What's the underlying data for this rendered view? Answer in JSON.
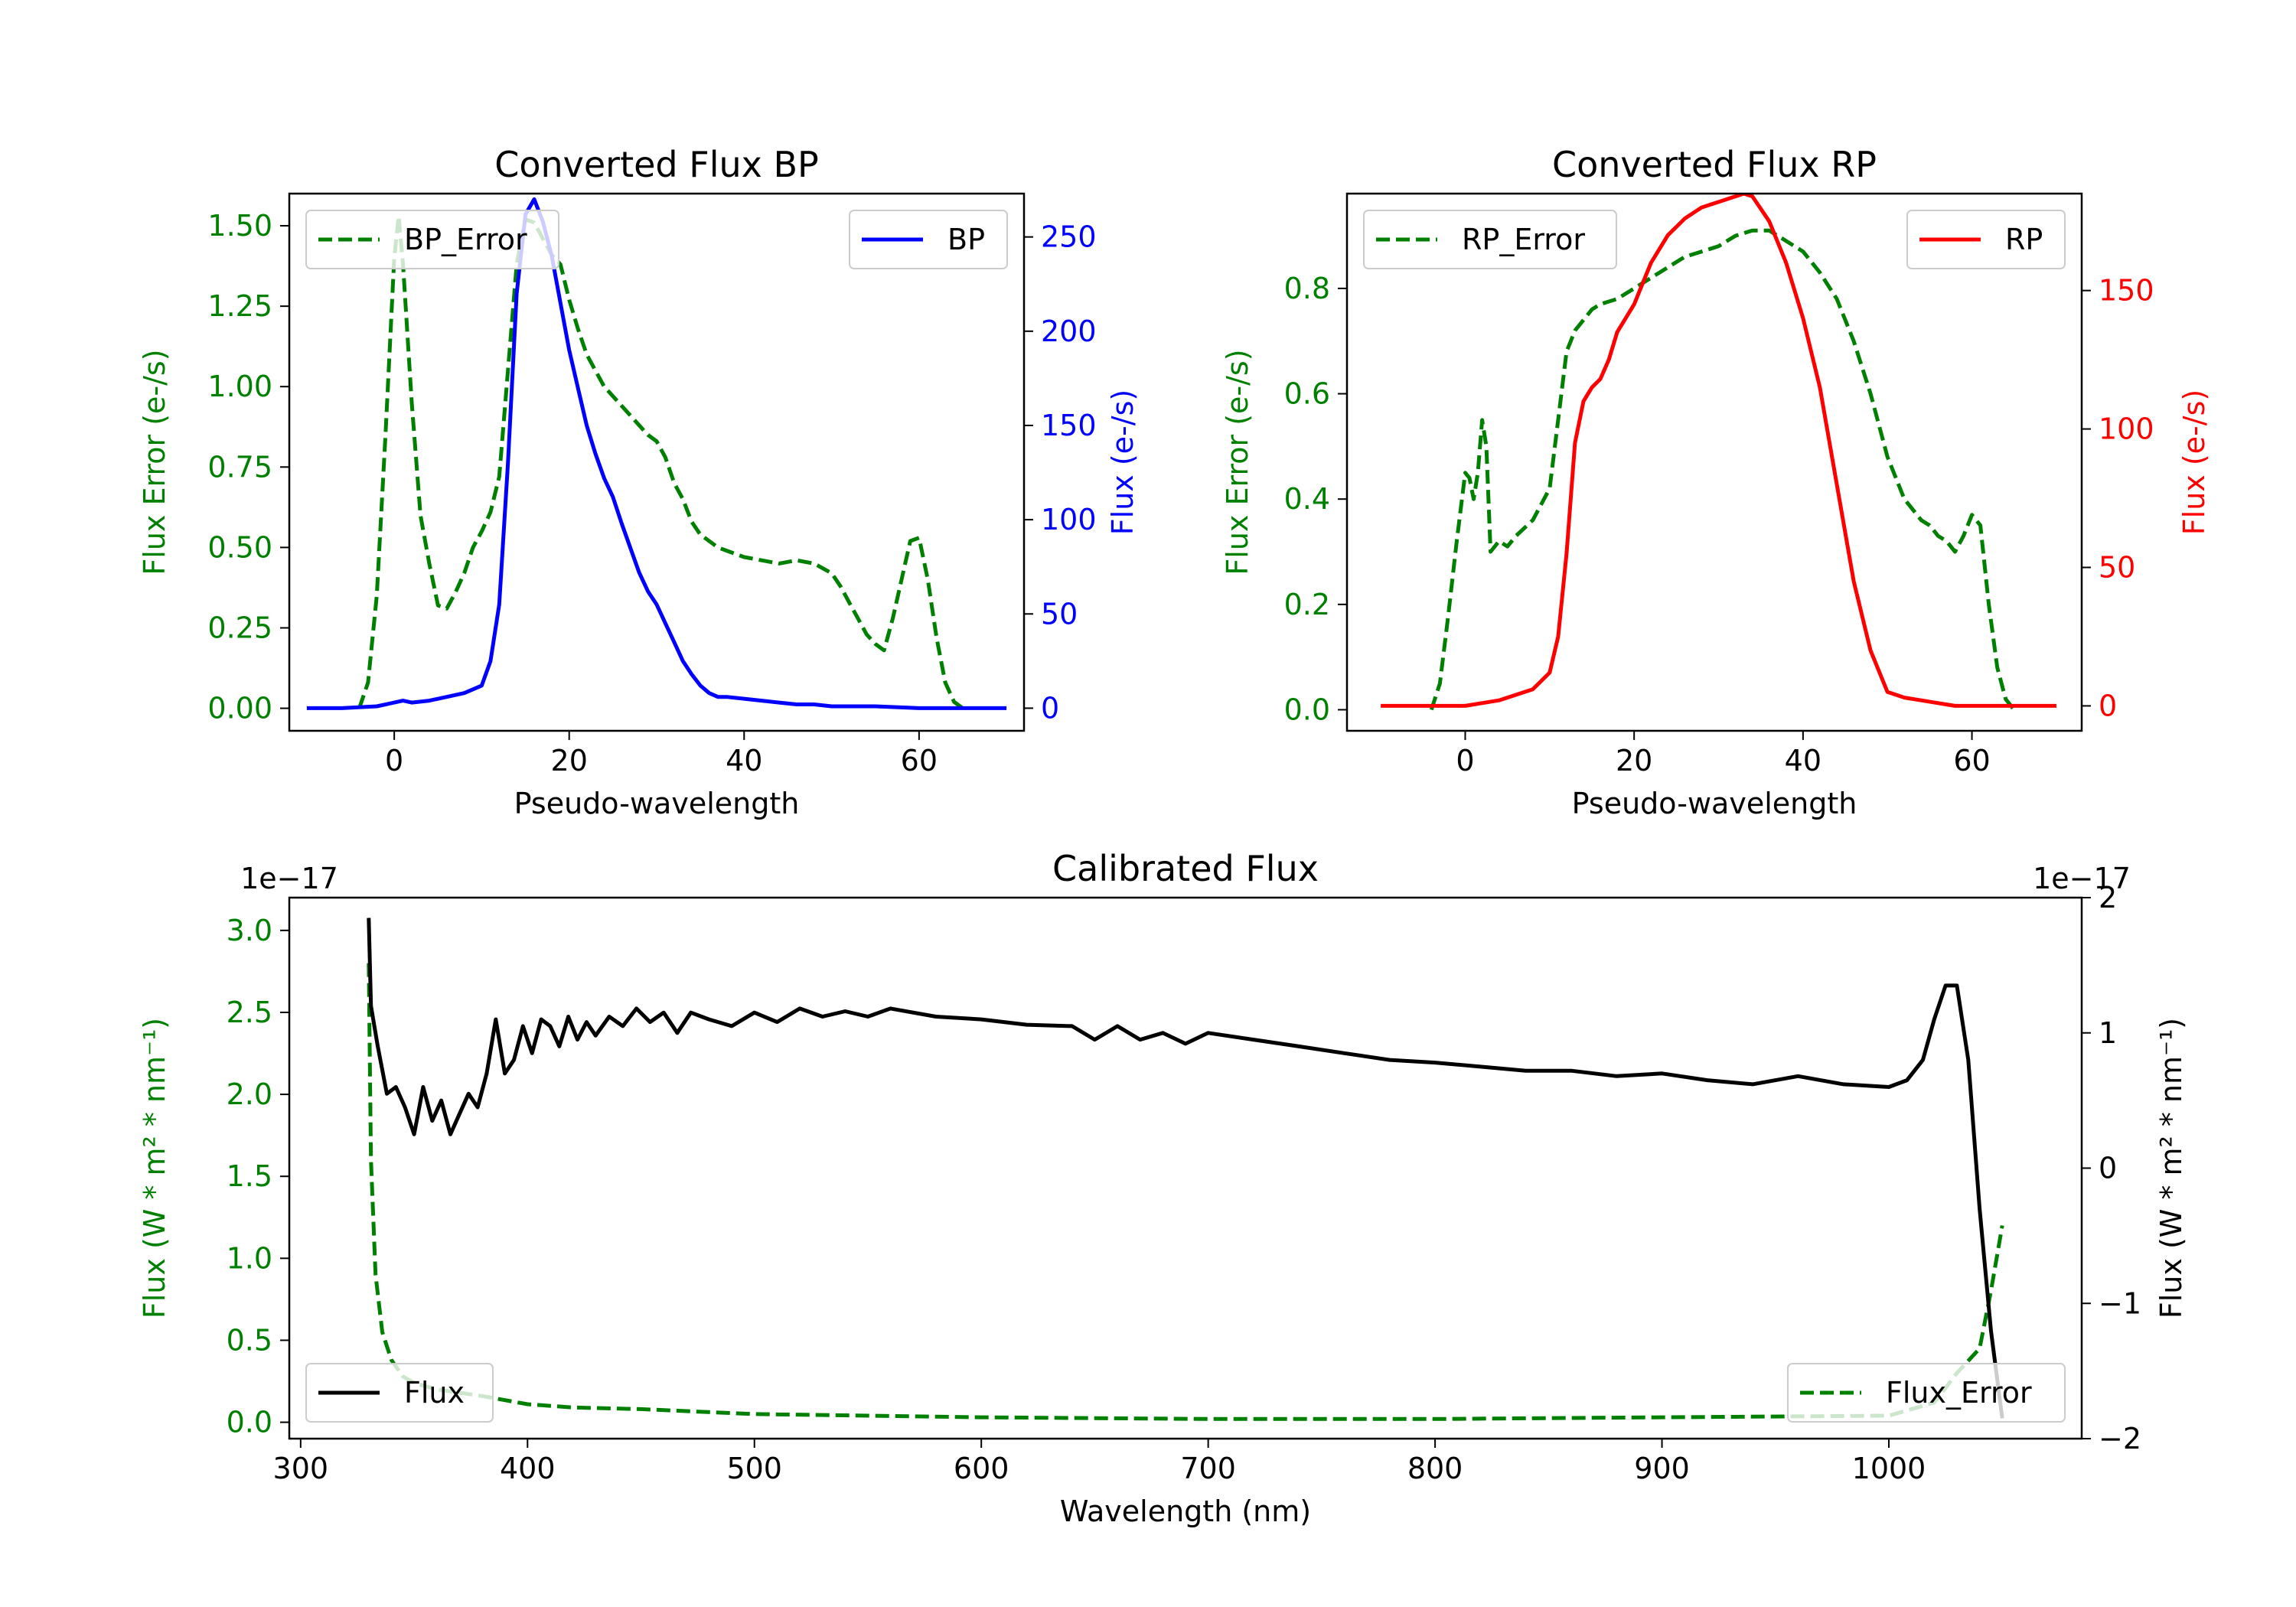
{
  "colors": {
    "green": "#008000",
    "blue": "#0000ff",
    "red": "#ff0000",
    "black": "#000000"
  },
  "chart_data": [
    {
      "type": "line",
      "title": "Converted Flux BP",
      "xlabel": "Pseudo-wavelength",
      "xlim": [
        -12,
        72
      ],
      "xticks": [
        0,
        20,
        40,
        60
      ],
      "ylabel": "Flux Error (e-/s)",
      "ylim": [
        -0.07,
        1.6
      ],
      "yticks": [
        0.0,
        0.25,
        0.5,
        0.75,
        1.0,
        1.25,
        1.5
      ],
      "ytick_labels": [
        "0.00",
        "0.25",
        "0.50",
        "0.75",
        "1.00",
        "1.25",
        "1.50"
      ],
      "y2label": "Flux (e-/s)",
      "y2lim": [
        -12,
        273
      ],
      "y2ticks": [
        0,
        50,
        100,
        150,
        200,
        250
      ],
      "legend_left": "BP_Error",
      "legend_right": "BP",
      "series": [
        {
          "name": "BP_Error",
          "axis": "left",
          "style": "dashed",
          "color": "#008000",
          "x": [
            -4,
            -3,
            -2,
            -1,
            0,
            0.5,
            1,
            2,
            3,
            4,
            5,
            6,
            7,
            8,
            9,
            10,
            11,
            12,
            13,
            14,
            15,
            16,
            17,
            18,
            19,
            20,
            21,
            22,
            23,
            24,
            25,
            26,
            27,
            28,
            29,
            30,
            31,
            32,
            33,
            34,
            35,
            36,
            37,
            38,
            39,
            40,
            42,
            44,
            46,
            48,
            50,
            51,
            52,
            53,
            54,
            55,
            56,
            57,
            58,
            59,
            60,
            61,
            62,
            63,
            64,
            65
          ],
          "y": [
            0,
            0.08,
            0.35,
            0.85,
            1.4,
            1.53,
            1.38,
            0.95,
            0.6,
            0.45,
            0.32,
            0.31,
            0.36,
            0.42,
            0.5,
            0.55,
            0.61,
            0.72,
            1.05,
            1.38,
            1.52,
            1.51,
            1.46,
            1.41,
            1.38,
            1.27,
            1.18,
            1.1,
            1.05,
            1.0,
            0.97,
            0.94,
            0.91,
            0.88,
            0.85,
            0.83,
            0.78,
            0.7,
            0.65,
            0.58,
            0.54,
            0.52,
            0.5,
            0.49,
            0.48,
            0.47,
            0.46,
            0.45,
            0.46,
            0.45,
            0.42,
            0.38,
            0.33,
            0.28,
            0.23,
            0.2,
            0.18,
            0.28,
            0.4,
            0.52,
            0.53,
            0.4,
            0.22,
            0.08,
            0.02,
            0
          ]
        },
        {
          "name": "BP",
          "axis": "right",
          "style": "solid",
          "color": "#0000ff",
          "x": [
            -10,
            -6,
            -2,
            0,
            1,
            2,
            4,
            6,
            8,
            10,
            11,
            12,
            13,
            14,
            15,
            16,
            17,
            18,
            19,
            20,
            21,
            22,
            23,
            24,
            25,
            26,
            27,
            28,
            29,
            30,
            31,
            32,
            33,
            34,
            35,
            36,
            37,
            38,
            40,
            42,
            44,
            46,
            48,
            50,
            55,
            60,
            65,
            70
          ],
          "y": [
            0,
            0,
            1,
            3,
            4,
            3,
            4,
            6,
            8,
            12,
            25,
            55,
            130,
            220,
            262,
            270,
            258,
            240,
            215,
            190,
            170,
            150,
            135,
            122,
            112,
            98,
            85,
            72,
            62,
            55,
            45,
            35,
            25,
            18,
            12,
            8,
            6,
            6,
            5,
            4,
            3,
            2,
            2,
            1,
            1,
            0,
            0,
            0
          ]
        }
      ]
    },
    {
      "type": "line",
      "title": "Converted Flux RP",
      "xlabel": "Pseudo-wavelength",
      "xlim": [
        -14,
        73
      ],
      "xticks": [
        0,
        20,
        40,
        60
      ],
      "ylabel": "Flux Error (e-/s)",
      "ylim": [
        -0.04,
        0.98
      ],
      "yticks": [
        0.0,
        0.2,
        0.4,
        0.6,
        0.8
      ],
      "ytick_labels": [
        "0.0",
        "0.2",
        "0.4",
        "0.6",
        "0.8"
      ],
      "y2label": "Flux (e-/s)",
      "y2lim": [
        -9,
        185
      ],
      "y2ticks": [
        0,
        50,
        100,
        150
      ],
      "legend_left": "RP_Error",
      "legend_right": "RP",
      "series": [
        {
          "name": "RP_Error",
          "axis": "left",
          "style": "dashed",
          "color": "#008000",
          "x": [
            -4,
            -3,
            -2,
            -1,
            0,
            0.5,
            1,
            1.5,
            2,
            2.5,
            3,
            4,
            5,
            6,
            8,
            10,
            11,
            12,
            13,
            14,
            15,
            16,
            18,
            20,
            22,
            24,
            26,
            28,
            30,
            32,
            34,
            36,
            38,
            40,
            42,
            44,
            46,
            48,
            50,
            52,
            54,
            55,
            56,
            57,
            58,
            59,
            60,
            61,
            62,
            63,
            64,
            65
          ],
          "y": [
            0,
            0.05,
            0.18,
            0.32,
            0.45,
            0.44,
            0.4,
            0.45,
            0.55,
            0.5,
            0.3,
            0.32,
            0.31,
            0.33,
            0.36,
            0.42,
            0.55,
            0.68,
            0.72,
            0.74,
            0.76,
            0.77,
            0.78,
            0.8,
            0.82,
            0.84,
            0.86,
            0.87,
            0.88,
            0.9,
            0.91,
            0.91,
            0.89,
            0.87,
            0.83,
            0.78,
            0.7,
            0.6,
            0.48,
            0.4,
            0.36,
            0.35,
            0.33,
            0.32,
            0.3,
            0.33,
            0.37,
            0.35,
            0.2,
            0.08,
            0.02,
            0
          ]
        },
        {
          "name": "RP",
          "axis": "right",
          "style": "solid",
          "color": "#ff0000",
          "x": [
            -10,
            -4,
            0,
            4,
            6,
            8,
            10,
            11,
            12,
            13,
            14,
            15,
            16,
            17,
            18,
            20,
            22,
            24,
            26,
            28,
            30,
            32,
            33,
            34,
            36,
            38,
            40,
            42,
            44,
            46,
            48,
            50,
            52,
            54,
            56,
            58,
            60,
            65,
            70
          ],
          "y": [
            0,
            0,
            0,
            2,
            4,
            6,
            12,
            25,
            55,
            95,
            110,
            115,
            118,
            125,
            135,
            145,
            160,
            170,
            176,
            180,
            182,
            184,
            185,
            184,
            175,
            160,
            140,
            115,
            80,
            45,
            20,
            5,
            3,
            2,
            1,
            0,
            0,
            0,
            0
          ]
        }
      ]
    },
    {
      "type": "line",
      "title": "Calibrated Flux",
      "xlabel": "Wavelength (nm)",
      "xlim": [
        295,
        1085
      ],
      "xticks": [
        300,
        400,
        500,
        600,
        700,
        800,
        900,
        1000
      ],
      "ylabel": "Flux (W * m² * nm⁻¹)",
      "ylim": [
        -1e-18,
        3.2e-17
      ],
      "yticks": [
        0.0,
        0.5,
        1.0,
        1.5,
        2.0,
        2.5,
        3.0
      ],
      "ytick_labels": [
        "0.0",
        "0.5",
        "1.0",
        "1.5",
        "2.0",
        "2.5",
        "3.0"
      ],
      "y_offset_label": "1e−17",
      "y2label": "Flux (W * m² * nm⁻¹)",
      "y2lim": [
        -2e-17,
        2e-17
      ],
      "y2ticks": [
        -2,
        -1,
        0,
        1,
        2
      ],
      "y2tick_labels": [
        "−2",
        "−1",
        "0",
        "1",
        "2"
      ],
      "y2_offset_label": "1e−17",
      "legend_left": "Flux",
      "legend_right": "Flux_Error",
      "series": [
        {
          "name": "Flux_Error",
          "axis": "left",
          "style": "dashed",
          "color": "#008000",
          "x": [
            330,
            331,
            333,
            336,
            340,
            345,
            350,
            360,
            380,
            400,
            420,
            450,
            500,
            600,
            700,
            800,
            900,
            1000,
            1020,
            1030,
            1040,
            1045,
            1050
          ],
          "y_scaled_1e-17": [
            2.8,
            1.6,
            0.9,
            0.55,
            0.38,
            0.28,
            0.24,
            0.2,
            0.16,
            0.11,
            0.09,
            0.08,
            0.05,
            0.03,
            0.02,
            0.02,
            0.03,
            0.04,
            0.12,
            0.3,
            0.45,
            0.8,
            1.2
          ]
        },
        {
          "name": "Flux",
          "axis": "right",
          "style": "solid",
          "color": "#000000",
          "x": [
            330,
            331,
            334,
            338,
            342,
            346,
            350,
            354,
            358,
            362,
            366,
            370,
            374,
            378,
            382,
            386,
            390,
            394,
            398,
            402,
            406,
            410,
            414,
            418,
            422,
            426,
            430,
            436,
            442,
            448,
            454,
            460,
            466,
            472,
            480,
            490,
            500,
            510,
            520,
            530,
            540,
            550,
            560,
            580,
            600,
            620,
            640,
            650,
            660,
            670,
            680,
            690,
            700,
            720,
            740,
            760,
            780,
            800,
            820,
            840,
            860,
            880,
            900,
            920,
            940,
            960,
            980,
            1000,
            1008,
            1015,
            1020,
            1025,
            1030,
            1035,
            1040,
            1045,
            1050
          ],
          "y_scaled_1e-17": [
            1.85,
            1.2,
            0.9,
            0.55,
            0.6,
            0.45,
            0.25,
            0.6,
            0.35,
            0.5,
            0.25,
            0.4,
            0.55,
            0.45,
            0.7,
            1.1,
            0.7,
            0.8,
            1.05,
            0.85,
            1.1,
            1.05,
            0.9,
            1.12,
            0.95,
            1.08,
            0.98,
            1.12,
            1.05,
            1.18,
            1.08,
            1.15,
            1.0,
            1.15,
            1.1,
            1.05,
            1.15,
            1.08,
            1.18,
            1.12,
            1.16,
            1.12,
            1.18,
            1.12,
            1.1,
            1.06,
            1.05,
            0.95,
            1.05,
            0.95,
            1.0,
            0.92,
            1.0,
            0.95,
            0.9,
            0.85,
            0.8,
            0.78,
            0.75,
            0.72,
            0.72,
            0.68,
            0.7,
            0.65,
            0.62,
            0.68,
            0.62,
            0.6,
            0.65,
            0.8,
            1.1,
            1.35,
            1.35,
            0.8,
            -0.3,
            -1.2,
            -1.85
          ]
        }
      ]
    }
  ]
}
